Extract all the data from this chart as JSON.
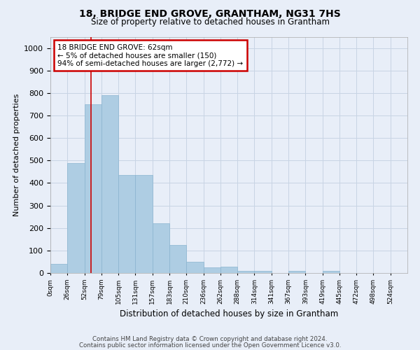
{
  "title": "18, BRIDGE END GROVE, GRANTHAM, NG31 7HS",
  "subtitle": "Size of property relative to detached houses in Grantham",
  "xlabel": "Distribution of detached houses by size in Grantham",
  "ylabel": "Number of detached properties",
  "bin_labels": [
    "0sqm",
    "26sqm",
    "52sqm",
    "79sqm",
    "105sqm",
    "131sqm",
    "157sqm",
    "183sqm",
    "210sqm",
    "236sqm",
    "262sqm",
    "288sqm",
    "314sqm",
    "341sqm",
    "367sqm",
    "393sqm",
    "419sqm",
    "445sqm",
    "472sqm",
    "498sqm",
    "524sqm"
  ],
  "bar_values": [
    40,
    490,
    750,
    790,
    435,
    435,
    220,
    125,
    50,
    25,
    28,
    10,
    10,
    0,
    8,
    0,
    8,
    0,
    0,
    0,
    0
  ],
  "bar_color": "#aecde3",
  "bar_edge_color": "#8ab4d0",
  "vline_color": "#cc0000",
  "annotation_text": "18 BRIDGE END GROVE: 62sqm\n← 5% of detached houses are smaller (150)\n94% of semi-detached houses are larger (2,772) →",
  "annotation_box_color": "#ffffff",
  "annotation_box_edge_color": "#cc0000",
  "ylim": [
    0,
    1050
  ],
  "grid_color": "#c8d4e4",
  "background_color": "#e8eef8",
  "footer_line1": "Contains HM Land Registry data © Crown copyright and database right 2024.",
  "footer_line2": "Contains public sector information licensed under the Open Government Licence v3.0."
}
